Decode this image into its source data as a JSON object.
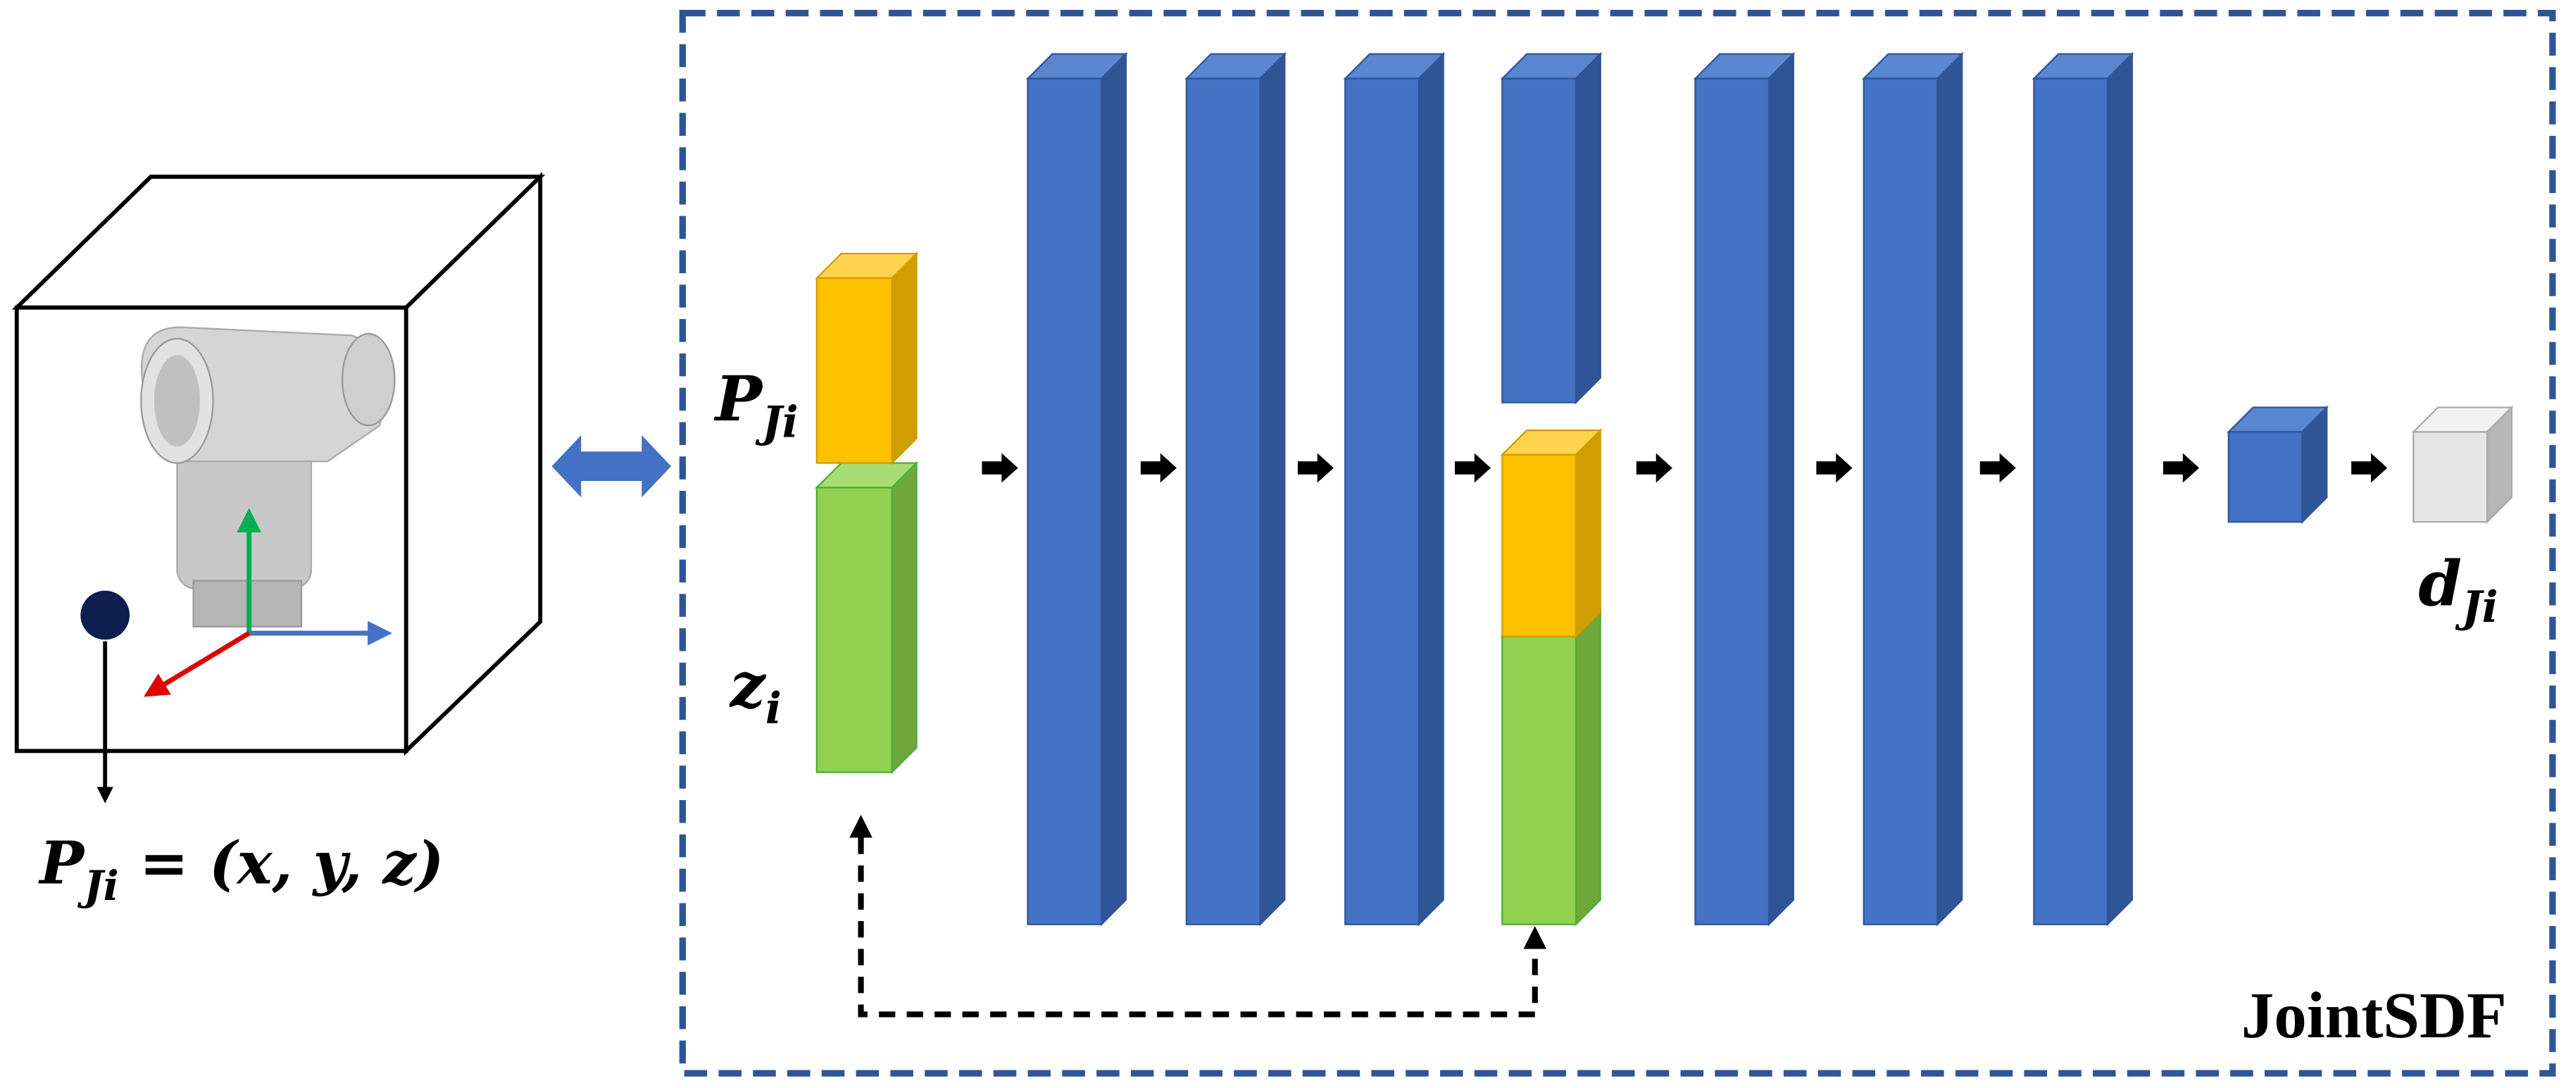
{
  "input_point": {
    "base": "P",
    "sub": "Ji"
  },
  "latent_code": {
    "base": "z",
    "sub": "i"
  },
  "output_distance": {
    "base": "d",
    "sub": "Ji"
  },
  "point_equation": {
    "base": "P",
    "sub": "Ji",
    "rest": " = (x, y, z)"
  },
  "network_name": "JointSDF"
}
